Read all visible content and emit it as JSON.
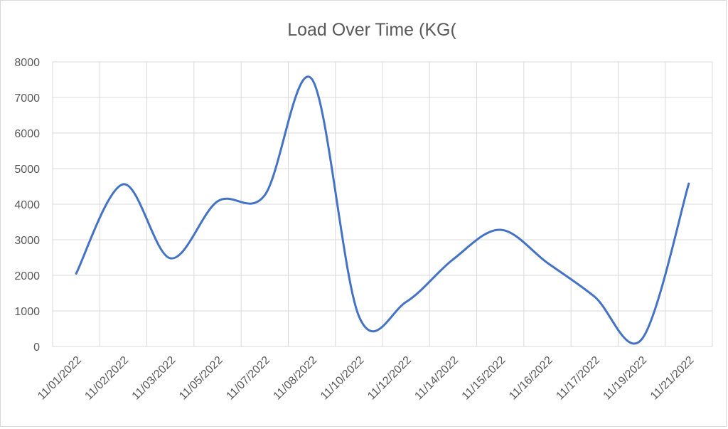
{
  "chart_data": {
    "type": "line",
    "title": "Load Over Time (KG(",
    "categories": [
      "11/01/2022",
      "11/02/2022",
      "11/03/2022",
      "11/05/2022",
      "11/07/2022",
      "11/08/2022",
      "11/10/2022",
      "11/12/2022",
      "11/14/2022",
      "11/15/2022",
      "11/16/2022",
      "11/17/2022",
      "11/19/2022",
      "11/21/2022"
    ],
    "series": [
      {
        "color": "#4472c4",
        "values": [
          2050,
          4560,
          2480,
          4080,
          4250,
          7520,
          850,
          1250,
          2450,
          3280,
          2350,
          1400,
          200,
          4580
        ]
      }
    ],
    "ylim": [
      0,
      8000
    ],
    "yticks": [
      0,
      1000,
      2000,
      3000,
      4000,
      5000,
      6000,
      7000,
      8000
    ],
    "grid": "vertical and horizontal",
    "legend": "none"
  }
}
